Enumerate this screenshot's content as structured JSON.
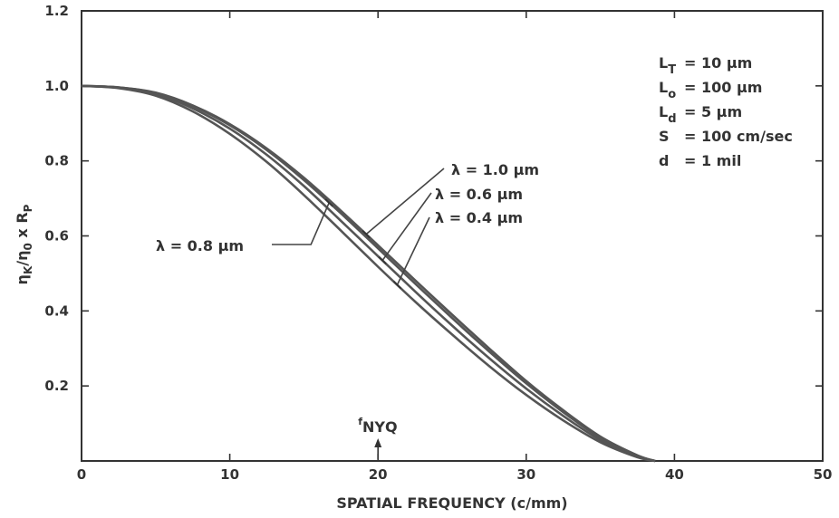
{
  "chart_data": {
    "type": "line",
    "xlabel": "SPATIAL FREQUENCY (c/mm)",
    "ylabel": "η_K/η_0 x R_P",
    "xlim": [
      0,
      50
    ],
    "ylim": [
      0,
      1.2
    ],
    "x_ticks": [
      "0",
      "10",
      "20",
      "30",
      "40",
      "50"
    ],
    "y_ticks": [
      "0.2",
      "0.4",
      "0.6",
      "0.8",
      "1.0",
      "1.2"
    ],
    "grid": false,
    "x": [
      0,
      2.5,
      5,
      7.5,
      10,
      12.5,
      15,
      17.5,
      20,
      22.5,
      25,
      27.5,
      30,
      32.5,
      35,
      37.5,
      38.7
    ],
    "series": [
      {
        "name": "λ = 1.0 μm",
        "values": [
          1.0,
          0.996,
          0.982,
          0.948,
          0.898,
          0.833,
          0.755,
          0.667,
          0.575,
          0.482,
          0.39,
          0.3,
          0.213,
          0.135,
          0.065,
          0.015,
          0.0
        ]
      },
      {
        "name": "λ = 0.8 μm",
        "values": [
          1.0,
          0.996,
          0.981,
          0.946,
          0.895,
          0.829,
          0.749,
          0.66,
          0.567,
          0.473,
          0.381,
          0.292,
          0.207,
          0.13,
          0.062,
          0.014,
          0.0
        ]
      },
      {
        "name": "λ = 0.6 μm",
        "values": [
          1.0,
          0.995,
          0.978,
          0.94,
          0.886,
          0.816,
          0.733,
          0.64,
          0.546,
          0.452,
          0.361,
          0.274,
          0.193,
          0.12,
          0.056,
          0.012,
          0.0
        ]
      },
      {
        "name": "λ = 0.4 μm",
        "values": [
          1.0,
          0.994,
          0.974,
          0.932,
          0.872,
          0.797,
          0.709,
          0.614,
          0.518,
          0.425,
          0.337,
          0.253,
          0.176,
          0.108,
          0.05,
          0.01,
          0.0
        ]
      }
    ],
    "annotations": {
      "fnyq_label": "f",
      "fnyq_sub": "NYQ",
      "fnyq_x": 20
    },
    "parameters": [
      {
        "sym": "L",
        "sub": "T",
        "text": "= 10 μm"
      },
      {
        "sym": "L",
        "sub": "o",
        "text": "= 100 μm"
      },
      {
        "sym": "L",
        "sub": "d",
        "text": "= 5 μm"
      },
      {
        "sym": "S",
        "sub": "",
        "text": "= 100 cm/sec"
      },
      {
        "sym": "d",
        "sub": "",
        "text": "= 1 mil"
      }
    ],
    "colors": {
      "axis": "#333333",
      "curve": "#555555"
    }
  }
}
